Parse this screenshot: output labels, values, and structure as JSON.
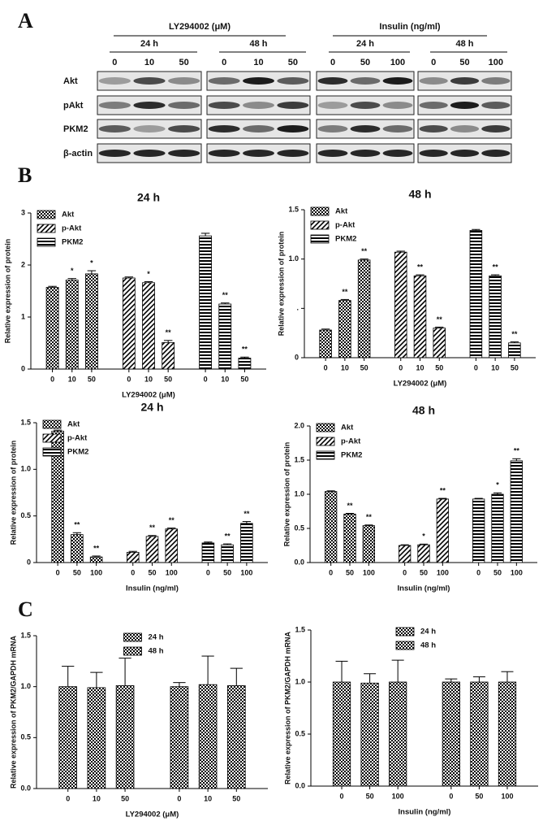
{
  "panel_labels": [
    "A",
    "B",
    "C"
  ],
  "blot": {
    "groups": [
      {
        "label": "LY294002 (μM)",
        "times": [
          {
            "label": "24 h",
            "lanes": [
              "0",
              "10",
              "50"
            ]
          },
          {
            "label": "48 h",
            "lanes": [
              "0",
              "10",
              "50"
            ]
          }
        ]
      },
      {
        "label": "Insulin (ng/ml)",
        "times": [
          {
            "label": "24 h",
            "lanes": [
              "0",
              "50",
              "100"
            ]
          },
          {
            "label": "48 h",
            "lanes": [
              "0",
              "50",
              "100"
            ]
          }
        ]
      }
    ],
    "rows": [
      "Akt",
      "pAkt",
      "PKM2",
      "β-actin"
    ]
  },
  "chart_data": [
    {
      "type": "bar",
      "title": "24 h",
      "ylabel": "Relative expression of protein",
      "xlabel": "LY294002 (μM)",
      "categories": [
        "0",
        "10",
        "50",
        "0",
        "10",
        "50",
        "0",
        "10",
        "50"
      ],
      "ylim": [
        0,
        3
      ],
      "yticks": [
        0,
        1,
        2,
        3
      ],
      "legend": "upper left",
      "series": [
        {
          "name": "Akt",
          "pattern": "checker",
          "values": [
            1.57,
            1.71,
            1.83,
            null,
            null,
            null,
            null,
            null,
            null
          ],
          "errors": [
            0.02,
            0.03,
            0.06,
            null,
            null,
            null,
            null,
            null,
            null
          ],
          "significance": [
            null,
            "*",
            "*",
            null,
            null,
            null,
            null,
            null,
            null
          ]
        },
        {
          "name": "p-Akt",
          "pattern": "diagonal",
          "values": [
            null,
            null,
            null,
            1.75,
            1.66,
            0.51,
            null,
            null,
            null
          ],
          "errors": [
            null,
            null,
            null,
            0.02,
            0.02,
            0.04,
            null,
            null,
            null
          ],
          "significance": [
            null,
            null,
            null,
            null,
            "*",
            "**",
            null,
            null,
            null
          ]
        },
        {
          "name": "PKM2",
          "pattern": "horizontal",
          "values": [
            null,
            null,
            null,
            null,
            null,
            null,
            2.56,
            1.25,
            0.21
          ],
          "errors": [
            null,
            null,
            null,
            null,
            null,
            null,
            0.05,
            0.02,
            0.02
          ],
          "significance": [
            null,
            null,
            null,
            null,
            null,
            null,
            null,
            "**",
            "**"
          ]
        }
      ]
    },
    {
      "type": "bar",
      "title": "48 h",
      "ylabel": "Relative expression of protein",
      "xlabel": "LY294002 (μM)",
      "categories": [
        "0",
        "10",
        "50",
        "0",
        "10",
        "50",
        "0",
        "10",
        "50"
      ],
      "ylim": [
        0,
        1.5
      ],
      "yticks": [
        0,
        {
          "value": 0.5,
          "label": "."
        },
        {
          "value": 1.0,
          "label": "1.0"
        },
        1.5
      ],
      "legend": "upper left",
      "series": [
        {
          "name": "Akt",
          "pattern": "checker",
          "values": [
            0.28,
            0.58,
            0.99,
            null,
            null,
            null,
            null,
            null,
            null
          ],
          "errors": [
            0.01,
            0.01,
            0.01,
            null,
            null,
            null,
            null,
            null,
            null
          ],
          "significance": [
            null,
            "**",
            "**",
            null,
            null,
            null,
            null,
            null,
            null
          ]
        },
        {
          "name": "p-Akt",
          "pattern": "diagonal",
          "values": [
            null,
            null,
            null,
            1.07,
            0.83,
            0.3,
            null,
            null,
            null
          ],
          "errors": [
            null,
            null,
            null,
            0.01,
            0.01,
            0.01,
            null,
            null,
            null
          ],
          "significance": [
            null,
            null,
            null,
            null,
            "**",
            "**",
            null,
            null,
            null
          ]
        },
        {
          "name": "PKM2",
          "pattern": "horizontal",
          "values": [
            null,
            null,
            null,
            null,
            null,
            null,
            1.29,
            0.83,
            0.15
          ],
          "errors": [
            null,
            null,
            null,
            null,
            null,
            null,
            0.01,
            0.01,
            0.01
          ],
          "significance": [
            null,
            null,
            null,
            null,
            null,
            null,
            null,
            "**",
            "**"
          ]
        }
      ]
    },
    {
      "type": "bar",
      "title": "24 h",
      "ylabel": "Relative expression of  protein",
      "xlabel": "Insulin (ng/ml)",
      "categories": [
        "0",
        "50",
        "100",
        "0",
        "50",
        "100",
        "0",
        "50",
        "100"
      ],
      "ylim": [
        0,
        1.5
      ],
      "yticks": [
        0,
        0.5,
        {
          "value": 1.0,
          "label": "1.0"
        },
        1.5
      ],
      "legend": "upper left",
      "series": [
        {
          "name": "Akt",
          "pattern": "checker",
          "values": [
            1.41,
            0.3,
            0.06,
            null,
            null,
            null,
            null,
            null,
            null
          ],
          "errors": [
            0.01,
            0.02,
            0.01,
            null,
            null,
            null,
            null,
            null,
            null
          ],
          "significance": [
            null,
            "**",
            "**",
            null,
            null,
            null,
            null,
            null,
            null
          ]
        },
        {
          "name": "p-Akt",
          "pattern": "diagonal",
          "values": [
            null,
            null,
            null,
            0.11,
            0.28,
            0.36,
            null,
            null,
            null
          ],
          "errors": [
            null,
            null,
            null,
            0.01,
            0.01,
            0.01,
            null,
            null,
            null
          ],
          "significance": [
            null,
            null,
            null,
            null,
            "**",
            "**",
            null,
            null,
            null
          ]
        },
        {
          "name": "PKM2",
          "pattern": "horizontal",
          "values": [
            null,
            null,
            null,
            null,
            null,
            null,
            0.21,
            0.19,
            0.42
          ],
          "errors": [
            null,
            null,
            null,
            null,
            null,
            null,
            0.01,
            0.01,
            0.02
          ],
          "significance": [
            null,
            null,
            null,
            null,
            null,
            null,
            null,
            "**",
            "**"
          ]
        }
      ]
    },
    {
      "type": "bar",
      "title": "48 h",
      "ylabel": "Relative expression of protein",
      "xlabel": "Insulin (ng/ml)",
      "categories": [
        "0",
        "50",
        "100",
        "0",
        "50",
        "100",
        "0",
        "50",
        "100"
      ],
      "ylim": [
        0,
        2
      ],
      "yticks": [
        {
          "value": 0,
          "label": "0.0"
        },
        0.5,
        {
          "value": 1.0,
          "label": "1.0"
        },
        1.5,
        {
          "value": 2.0,
          "label": "2.0"
        }
      ],
      "legend": "upper left",
      "series": [
        {
          "name": "Akt",
          "pattern": "checker",
          "values": [
            1.04,
            0.71,
            0.54,
            null,
            null,
            null,
            null,
            null,
            null
          ],
          "errors": [
            0.01,
            0.01,
            0.01,
            null,
            null,
            null,
            null,
            null,
            null
          ],
          "significance": [
            null,
            "**",
            "**",
            null,
            null,
            null,
            null,
            null,
            null
          ]
        },
        {
          "name": "p-Akt",
          "pattern": "diagonal",
          "values": [
            null,
            null,
            null,
            0.25,
            0.26,
            0.93,
            null,
            null,
            null
          ],
          "errors": [
            null,
            null,
            null,
            0.01,
            0.01,
            0.01,
            null,
            null,
            null
          ],
          "significance": [
            null,
            null,
            null,
            null,
            "*",
            "**",
            null,
            null,
            null
          ]
        },
        {
          "name": "PKM2",
          "pattern": "horizontal",
          "values": [
            null,
            null,
            null,
            null,
            null,
            null,
            0.93,
            1.0,
            1.49
          ],
          "errors": [
            null,
            null,
            null,
            null,
            null,
            null,
            0.01,
            0.02,
            0.03
          ],
          "significance": [
            null,
            null,
            null,
            null,
            null,
            null,
            null,
            "*",
            "**"
          ]
        }
      ]
    },
    {
      "type": "bar",
      "ylabel": "Relative expression of PKM2/GAPDH mRNA",
      "xlabel": "LY294002 (μM)",
      "categories": [
        "0",
        "10",
        "50",
        "0",
        "10",
        "50"
      ],
      "ylim": [
        0,
        1.5
      ],
      "yticks": [
        {
          "value": 0,
          "label": "0.0"
        },
        0.5,
        {
          "value": 1.0,
          "label": "1.0"
        },
        1.5
      ],
      "legend": "upper center",
      "series": [
        {
          "name": "24 h",
          "pattern": "checker",
          "values": [
            1.0,
            0.99,
            1.01,
            null,
            null,
            null
          ],
          "errors": [
            0.2,
            0.15,
            0.27,
            null,
            null,
            null
          ]
        },
        {
          "name": "48 h",
          "pattern": "checker",
          "values": [
            null,
            null,
            null,
            1.0,
            1.02,
            1.01
          ],
          "errors": [
            null,
            null,
            null,
            0.04,
            0.28,
            0.17
          ]
        }
      ]
    },
    {
      "type": "bar",
      "ylabel": "Relative expression of PKM2/GAPDH mRNA",
      "xlabel": "Insulin (ng/ml)",
      "categories": [
        "0",
        "50",
        "100",
        "0",
        "50",
        "100"
      ],
      "ylim": [
        0,
        1.5
      ],
      "yticks": [
        {
          "value": 0,
          "label": "0.0"
        },
        0.5,
        {
          "value": 1.0,
          "label": "1.0"
        },
        1.5
      ],
      "legend": "upper center",
      "series": [
        {
          "name": "24 h",
          "pattern": "checker",
          "values": [
            1.0,
            0.99,
            1.0,
            null,
            null,
            null
          ],
          "errors": [
            0.2,
            0.09,
            0.21,
            null,
            null,
            null
          ]
        },
        {
          "name": "48 h",
          "pattern": "checker",
          "values": [
            null,
            null,
            null,
            1.0,
            1.0,
            1.0
          ],
          "errors": [
            null,
            null,
            null,
            0.03,
            0.05,
            0.1
          ]
        }
      ]
    }
  ]
}
